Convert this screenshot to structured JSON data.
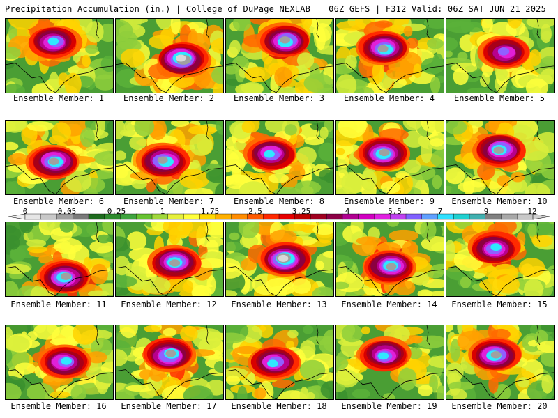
{
  "header": {
    "left_title": "Precipitation Accumulation (in.) | College of DuPage NEXLAB",
    "right_title": "06Z GEFS | F312 Valid: 06Z SAT JUN 21 2025"
  },
  "members": [
    {
      "label": "Ensemble Member: 1"
    },
    {
      "label": "Ensemble Member: 2"
    },
    {
      "label": "Ensemble Member: 3"
    },
    {
      "label": "Ensemble Member: 4"
    },
    {
      "label": "Ensemble Member: 5"
    },
    {
      "label": "Ensemble Member: 6"
    },
    {
      "label": "Ensemble Member: 7"
    },
    {
      "label": "Ensemble Member: 8"
    },
    {
      "label": "Ensemble Member: 9"
    },
    {
      "label": "Ensemble Member: 10"
    },
    {
      "label": "Ensemble Member: 11"
    },
    {
      "label": "Ensemble Member: 12"
    },
    {
      "label": "Ensemble Member: 13"
    },
    {
      "label": "Ensemble Member: 14"
    },
    {
      "label": "Ensemble Member: 15"
    },
    {
      "label": "Ensemble Member: 16"
    },
    {
      "label": "Ensemble Member: 17"
    },
    {
      "label": "Ensemble Member: 18"
    },
    {
      "label": "Ensemble Member: 19"
    },
    {
      "label": "Ensemble Member: 20"
    }
  ],
  "colorbar": {
    "tick_labels": [
      "0",
      "0.05",
      "0.25",
      "1",
      "1.75",
      "2.5",
      "3.25",
      "4",
      "5.5",
      "7",
      "9",
      "12"
    ],
    "colors": [
      "#e6e6e6",
      "#c8c8c8",
      "#a0a0a0",
      "#7a7a7a",
      "#1e6b1e",
      "#2e8b2e",
      "#3fa43f",
      "#66c230",
      "#a0d83c",
      "#e6f03c",
      "#ffff3c",
      "#ffd700",
      "#ffb000",
      "#ff8c00",
      "#ff5a00",
      "#ff2800",
      "#e60000",
      "#c00000",
      "#a00020",
      "#8b0045",
      "#b00090",
      "#d000c0",
      "#e020e0",
      "#c040f0",
      "#8060ff",
      "#60a0ff",
      "#30e0ff",
      "#20d0d0",
      "#40b0b0",
      "#808080",
      "#a8a8a8",
      "#c8c8c8"
    ]
  }
}
